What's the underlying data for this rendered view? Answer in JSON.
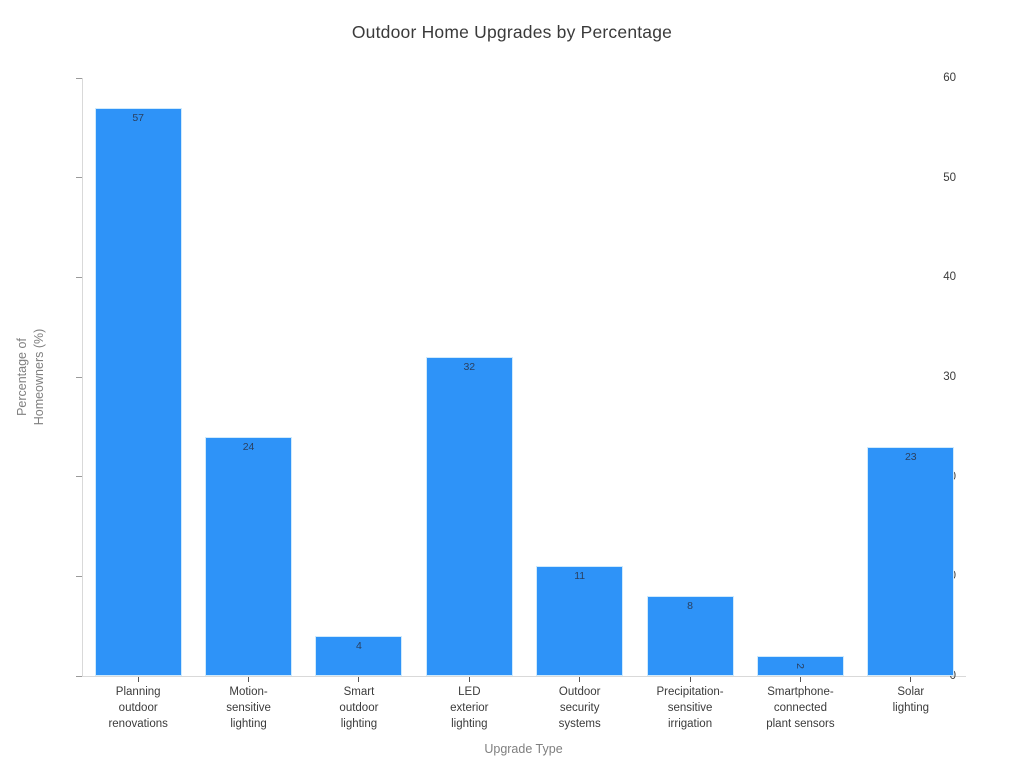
{
  "title": "Outdoor Home Upgrades by Percentage",
  "chart_data": {
    "type": "bar",
    "title": "Outdoor Home Upgrades by Percentage",
    "xlabel": "Upgrade Type",
    "ylabel": "Percentage of Homeowners (%)",
    "ylabel_lines": [
      "Percentage of",
      "Homeowners (%)"
    ],
    "categories": [
      "Planning outdoor renovations",
      "Motion-sensitive lighting",
      "Smart outdoor lighting",
      "LED exterior lighting",
      "Outdoor security systems",
      "Precipitation-sensitive irrigation",
      "Smartphone-connected plant sensors",
      "Solar lighting"
    ],
    "category_tick_lines": [
      [
        "Planning",
        "outdoor",
        "renovations"
      ],
      [
        "Motion-",
        "sensitive",
        "lighting"
      ],
      [
        "Smart",
        "outdoor",
        "lighting"
      ],
      [
        "LED",
        "exterior",
        "lighting"
      ],
      [
        "Outdoor",
        "security",
        "systems"
      ],
      [
        "Precipitation-",
        "sensitive",
        "irrigation"
      ],
      [
        "Smartphone-",
        "connected",
        "plant sensors"
      ],
      [
        "Solar",
        "lighting"
      ]
    ],
    "values": [
      57,
      24,
      4,
      32,
      11,
      8,
      2,
      23
    ],
    "value_labels": [
      "57",
      "24",
      "4",
      "32",
      "11",
      "8",
      "2",
      "23"
    ],
    "ylim": [
      0,
      60
    ],
    "yticks": [
      0,
      10,
      20,
      30,
      40,
      50,
      60
    ],
    "grid": false,
    "legend": "none",
    "bar_color": "#2E93F8",
    "bar_edge_color": "#CFEAFC",
    "value_label_color": "#2A3F5F"
  }
}
